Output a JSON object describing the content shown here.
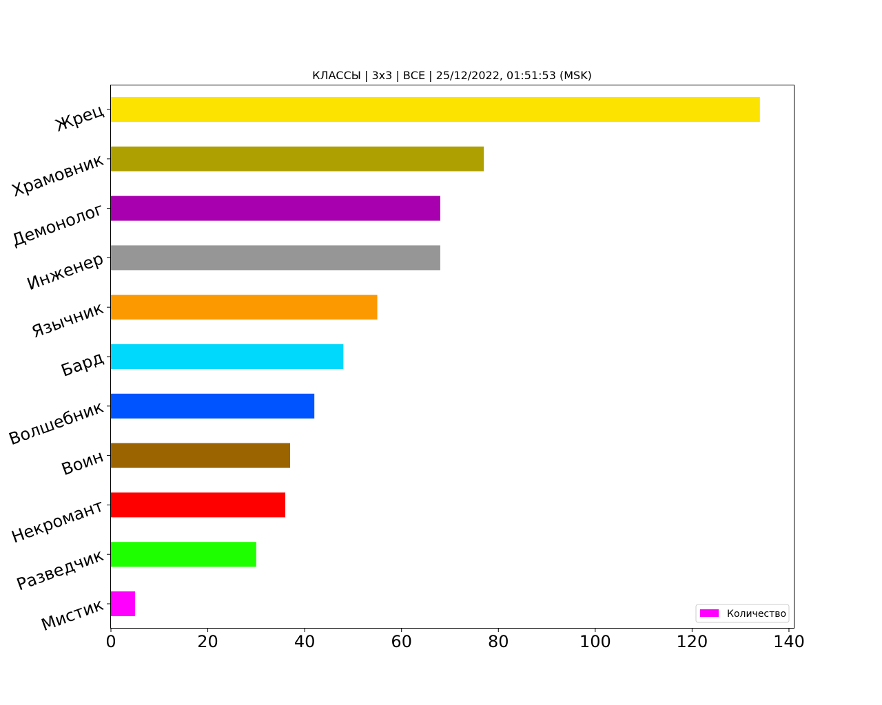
{
  "chart_data": {
    "type": "bar",
    "orientation": "horizontal",
    "title": "КЛАССЫ | 3x3 | ВСЕ | 25/12/2022, 01:51:53 (MSK)",
    "xlabel": "",
    "ylabel": "",
    "xlim": [
      0,
      141
    ],
    "xticks": [
      0,
      20,
      40,
      60,
      80,
      100,
      120,
      140
    ],
    "grid": false,
    "legend_position": "lower-right",
    "legend": [
      {
        "label": "Количество",
        "color": "#ff00ff"
      }
    ],
    "categories": [
      "Жрец",
      "Храмовник",
      "Демонолог",
      "Инженер",
      "Язычник",
      "Бард",
      "Волшебник",
      "Воин",
      "Некромант",
      "Разведчик",
      "Мистик"
    ],
    "values": [
      134,
      77,
      68,
      68,
      55,
      48,
      42,
      37,
      36,
      30,
      5
    ],
    "colors": [
      "#fce300",
      "#aea000",
      "#a800ae",
      "#969696",
      "#fc9900",
      "#00d8fc",
      "#0054ff",
      "#9c6400",
      "#ff0000",
      "#1eff00",
      "#ff00ff"
    ]
  }
}
